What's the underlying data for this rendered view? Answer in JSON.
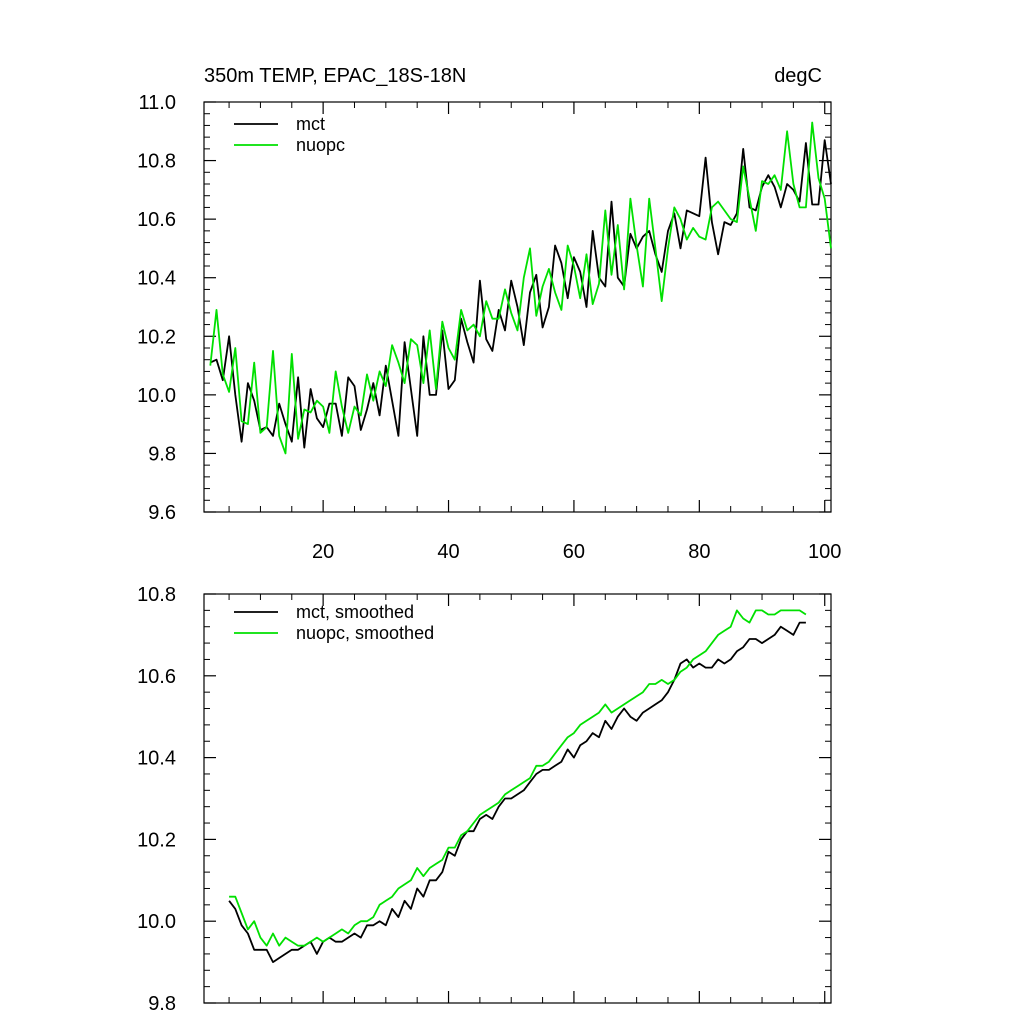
{
  "chart_data": [
    {
      "type": "line",
      "title": "350m TEMP, EPAC_18S-18N",
      "units": "degC",
      "xlabel": "",
      "ylabel": "",
      "xlim": [
        1,
        101
      ],
      "ylim": [
        9.6,
        11.0
      ],
      "x_ticks": [
        "20",
        "40",
        "60",
        "80",
        "100"
      ],
      "y_ticks": [
        "9.6",
        "9.8",
        "10.0",
        "10.2",
        "10.4",
        "10.6",
        "10.8",
        "11.0"
      ],
      "legend_position": "top-left",
      "x_start": 2,
      "series": [
        {
          "name": "mct",
          "color": "#000000",
          "values": [
            10.11,
            10.12,
            10.05,
            10.2,
            10.0,
            9.84,
            10.04,
            9.98,
            9.88,
            9.89,
            9.86,
            9.97,
            9.9,
            9.84,
            10.06,
            9.82,
            10.02,
            9.92,
            9.89,
            9.97,
            9.97,
            9.86,
            10.06,
            10.03,
            9.88,
            9.95,
            10.04,
            9.93,
            10.1,
            9.98,
            9.86,
            10.18,
            10.02,
            9.86,
            10.2,
            10.0,
            10.0,
            10.22,
            10.02,
            10.05,
            10.26,
            10.18,
            10.11,
            10.39,
            10.19,
            10.15,
            10.29,
            10.22,
            10.39,
            10.3,
            10.17,
            10.35,
            10.41,
            10.23,
            10.3,
            10.51,
            10.45,
            10.33,
            10.47,
            10.42,
            10.3,
            10.56,
            10.4,
            10.37,
            10.66,
            10.4,
            10.37,
            10.55,
            10.5,
            10.54,
            10.56,
            10.48,
            10.42,
            10.56,
            10.62,
            10.5,
            10.63,
            10.62,
            10.61,
            10.81,
            10.59,
            10.48,
            10.59,
            10.58,
            10.62,
            10.84,
            10.64,
            10.63,
            10.71,
            10.75,
            10.71,
            10.64,
            10.72,
            10.7,
            10.66,
            10.86,
            10.65,
            10.65,
            10.87,
            10.72
          ]
        },
        {
          "name": "nuopc",
          "color": "#00e000",
          "values": [
            10.1,
            10.29,
            10.07,
            10.01,
            10.16,
            9.91,
            9.9,
            10.11,
            9.87,
            9.89,
            10.15,
            9.86,
            9.8,
            10.14,
            9.85,
            9.95,
            9.94,
            9.98,
            9.96,
            9.87,
            10.08,
            9.96,
            9.87,
            9.96,
            9.93,
            10.07,
            9.98,
            10.08,
            10.03,
            10.17,
            10.11,
            10.04,
            10.19,
            10.17,
            10.04,
            10.22,
            10.02,
            10.25,
            10.16,
            10.12,
            10.29,
            10.22,
            10.24,
            10.2,
            10.32,
            10.26,
            10.26,
            10.36,
            10.28,
            10.22,
            10.4,
            10.5,
            10.27,
            10.37,
            10.43,
            10.35,
            10.29,
            10.51,
            10.44,
            10.33,
            10.48,
            10.31,
            10.38,
            10.63,
            10.41,
            10.58,
            10.36,
            10.67,
            10.51,
            10.37,
            10.67,
            10.5,
            10.32,
            10.5,
            10.64,
            10.6,
            10.53,
            10.57,
            10.54,
            10.53,
            10.64,
            10.66,
            10.63,
            10.6,
            10.59,
            10.78,
            10.67,
            10.56,
            10.73,
            10.72,
            10.75,
            10.7,
            10.9,
            10.72,
            10.64,
            10.64,
            10.93,
            10.74,
            10.67,
            10.5
          ]
        }
      ]
    },
    {
      "type": "line",
      "title": "",
      "xlabel": "",
      "ylabel": "",
      "xlim": [
        1,
        101
      ],
      "ylim": [
        9.8,
        10.8
      ],
      "x_ticks": [],
      "y_ticks": [
        "9.8",
        "10.0",
        "10.2",
        "10.4",
        "10.6",
        "10.8"
      ],
      "legend_position": "top-left",
      "x_start": 5,
      "series": [
        {
          "name": "mct, smoothed",
          "color": "#000000",
          "values": [
            10.05,
            10.03,
            9.99,
            9.97,
            9.93,
            9.93,
            9.93,
            9.9,
            9.91,
            9.92,
            9.93,
            9.93,
            9.94,
            9.95,
            9.92,
            9.95,
            9.96,
            9.95,
            9.95,
            9.96,
            9.97,
            9.96,
            9.99,
            9.99,
            10.0,
            9.99,
            10.03,
            10.01,
            10.05,
            10.03,
            10.08,
            10.06,
            10.1,
            10.1,
            10.12,
            10.17,
            10.16,
            10.2,
            10.22,
            10.22,
            10.25,
            10.26,
            10.25,
            10.28,
            10.3,
            10.3,
            10.31,
            10.32,
            10.34,
            10.36,
            10.37,
            10.37,
            10.38,
            10.39,
            10.42,
            10.4,
            10.43,
            10.44,
            10.46,
            10.45,
            10.49,
            10.47,
            10.5,
            10.52,
            10.5,
            10.49,
            10.51,
            10.52,
            10.53,
            10.54,
            10.56,
            10.59,
            10.63,
            10.64,
            10.62,
            10.63,
            10.62,
            10.62,
            10.64,
            10.63,
            10.64,
            10.66,
            10.67,
            10.69,
            10.69,
            10.68,
            10.69,
            10.7,
            10.72,
            10.71,
            10.7,
            10.73,
            10.73
          ]
        },
        {
          "name": "nuopc, smoothed",
          "color": "#00e000",
          "values": [
            10.06,
            10.06,
            10.02,
            9.98,
            10.0,
            9.96,
            9.94,
            9.97,
            9.94,
            9.96,
            9.95,
            9.94,
            9.94,
            9.95,
            9.96,
            9.95,
            9.96,
            9.97,
            9.98,
            9.97,
            9.99,
            10.0,
            10.0,
            10.01,
            10.04,
            10.05,
            10.06,
            10.08,
            10.09,
            10.1,
            10.13,
            10.11,
            10.13,
            10.14,
            10.15,
            10.18,
            10.18,
            10.21,
            10.22,
            10.24,
            10.26,
            10.27,
            10.28,
            10.29,
            10.31,
            10.32,
            10.33,
            10.34,
            10.35,
            10.38,
            10.38,
            10.39,
            10.41,
            10.43,
            10.45,
            10.46,
            10.48,
            10.49,
            10.5,
            10.51,
            10.53,
            10.51,
            10.52,
            10.53,
            10.54,
            10.55,
            10.56,
            10.58,
            10.58,
            10.59,
            10.58,
            10.59,
            10.61,
            10.62,
            10.64,
            10.65,
            10.66,
            10.68,
            10.7,
            10.71,
            10.72,
            10.76,
            10.74,
            10.73,
            10.76,
            10.76,
            10.75,
            10.75,
            10.76,
            10.76,
            10.76,
            10.76,
            10.75
          ]
        }
      ]
    }
  ]
}
